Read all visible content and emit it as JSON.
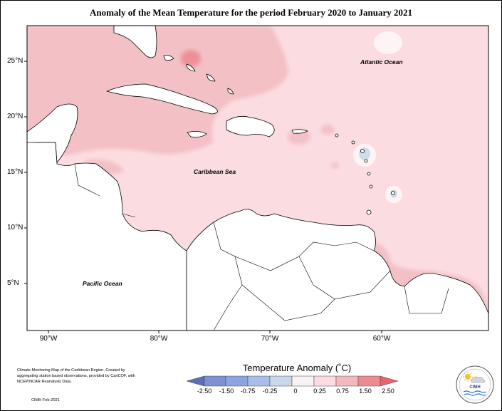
{
  "title": "Anomaly of the Mean Temperature for the period February 2020 to January 2021",
  "axes": {
    "lat_labels": [
      "25°N",
      "20°N",
      "15°N",
      "10°N",
      "5°N"
    ],
    "lon_labels": [
      "90°W",
      "80°W",
      "70°W",
      "60°W"
    ]
  },
  "map_labels": {
    "atlantic": "Atlantic Ocean",
    "caribbean": "Caribbean Sea",
    "pacific": "Pacific Ocean"
  },
  "legend": {
    "title": "Temperature Anomaly (˚C)",
    "ticks": [
      "-2.50",
      "-1.50",
      "-0.75",
      "-0.25",
      "0",
      "0.25",
      "0.75",
      "1.50",
      "2.50"
    ],
    "colors": [
      "#5c6fb8",
      "#8ea4e0",
      "#a9bde8",
      "#c7d8ea",
      "#f7f2f3",
      "#fbdde1",
      "#f4b9bf",
      "#ee8b92",
      "#e8636d"
    ]
  },
  "credit": {
    "text": "Climate Monitoring Map of the Caribbean Region. Created by aggregating station based observations, provided by CariCOF, with NCEP/NCAR Reanalysis Data.",
    "date": "CIMH Feb-2021"
  },
  "logo": {
    "name": "CIMH"
  },
  "colors": {
    "sea_base": "#fbdde1",
    "anomaly_warm": "#f2c0c5",
    "anomaly_hot": "#ee8f98",
    "anomaly_cool": "#cfdde8",
    "land": "#ffffff"
  }
}
